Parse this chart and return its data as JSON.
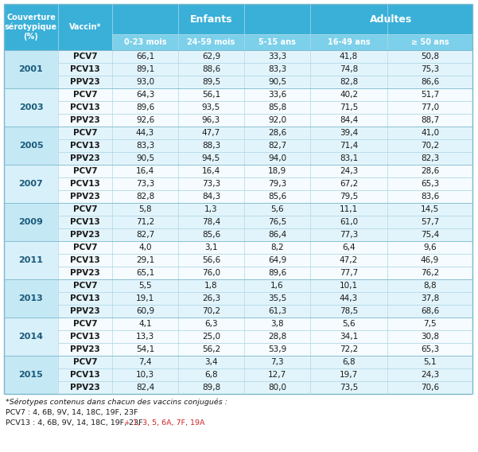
{
  "years": [
    "2001",
    "2003",
    "2005",
    "2007",
    "2009",
    "2011",
    "2013",
    "2014",
    "2015"
  ],
  "vaccines": [
    "PCV7",
    "PCV13",
    "PPV23"
  ],
  "col_headers": [
    "0-23 mois",
    "24-59 mois",
    "5-15 ans",
    "16-49 ans",
    "≥ 50 ans"
  ],
  "data": {
    "2001": {
      "PCV7": [
        66.1,
        62.9,
        33.3,
        41.8,
        50.8
      ],
      "PCV13": [
        89.1,
        88.6,
        83.3,
        74.8,
        75.3
      ],
      "PPV23": [
        93.0,
        89.5,
        90.5,
        82.8,
        86.6
      ]
    },
    "2003": {
      "PCV7": [
        64.3,
        56.1,
        33.6,
        40.2,
        51.7
      ],
      "PCV13": [
        89.6,
        93.5,
        85.8,
        71.5,
        77.0
      ],
      "PPV23": [
        92.6,
        96.3,
        92.0,
        84.4,
        88.7
      ]
    },
    "2005": {
      "PCV7": [
        44.3,
        47.7,
        28.6,
        39.4,
        41.0
      ],
      "PCV13": [
        83.3,
        88.3,
        82.7,
        71.4,
        70.2
      ],
      "PPV23": [
        90.5,
        94.5,
        94.0,
        83.1,
        82.3
      ]
    },
    "2007": {
      "PCV7": [
        16.4,
        16.4,
        18.9,
        24.3,
        28.6
      ],
      "PCV13": [
        73.3,
        73.3,
        79.3,
        67.2,
        65.3
      ],
      "PPV23": [
        82.8,
        84.3,
        85.6,
        79.5,
        83.6
      ]
    },
    "2009": {
      "PCV7": [
        5.8,
        1.3,
        5.6,
        11.1,
        14.5
      ],
      "PCV13": [
        71.2,
        78.4,
        76.5,
        61.0,
        57.7
      ],
      "PPV23": [
        82.7,
        85.6,
        86.4,
        77.3,
        75.4
      ]
    },
    "2011": {
      "PCV7": [
        4.0,
        3.1,
        8.2,
        6.4,
        9.6
      ],
      "PCV13": [
        29.1,
        56.6,
        64.9,
        47.2,
        46.9
      ],
      "PPV23": [
        65.1,
        76.0,
        89.6,
        77.7,
        76.2
      ]
    },
    "2013": {
      "PCV7": [
        5.5,
        1.8,
        1.6,
        10.1,
        8.8
      ],
      "PCV13": [
        19.1,
        26.3,
        35.5,
        44.3,
        37.8
      ],
      "PPV23": [
        60.9,
        70.2,
        61.3,
        78.5,
        68.6
      ]
    },
    "2014": {
      "PCV7": [
        4.1,
        6.3,
        3.8,
        5.6,
        7.5
      ],
      "PCV13": [
        13.3,
        25.0,
        28.8,
        34.1,
        30.8
      ],
      "PPV23": [
        54.1,
        56.2,
        53.9,
        72.2,
        65.3
      ]
    },
    "2015": {
      "PCV7": [
        7.4,
        3.4,
        7.3,
        6.8,
        5.1
      ],
      "PCV13": [
        10.3,
        6.8,
        12.7,
        19.7,
        24.3
      ],
      "PPV23": [
        82.4,
        89.8,
        80.0,
        73.5,
        70.6
      ]
    }
  },
  "colors": {
    "header_dark": "#3ab0d8",
    "header_light": "#7dd0ea",
    "row_odd": "#e2f4fb",
    "row_even": "#f5fbfe",
    "year_odd": "#c5e8f5",
    "year_even": "#d8f0f9",
    "border_outer": "#7ab8cc",
    "border_inner": "#b0d8e8",
    "text_dark": "#1a1a1a",
    "text_year": "#1a5a7a",
    "text_white": "#ffffff",
    "text_red": "#cc2222"
  },
  "footnote1": "*Sérotypes contenus dans chacun des vaccins conjugués :",
  "footnote2": "PCV7 : 4, 6B, 9V, 14, 18C, 19F, 23F",
  "footnote3_black": "PCV13 : 4, 6B, 9V, 14, 18C, 19F, 23F",
  "footnote3_red": " + 1, 3, 5, 6A, 7F, 19A"
}
